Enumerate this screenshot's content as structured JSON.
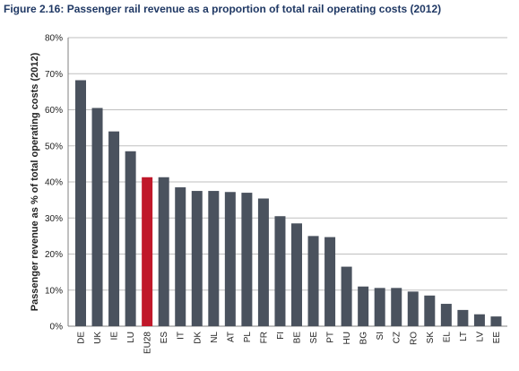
{
  "chart_data": {
    "type": "bar",
    "title": "Figure 2.16: Passenger rail revenue as a proportion of total rail operating costs (2012)",
    "xlabel": "",
    "ylabel": "Passenger revenue as % of total operating costs (2012)",
    "ylim": [
      0,
      80
    ],
    "yticks": [
      "0%",
      "10%",
      "20%",
      "30%",
      "40%",
      "50%",
      "60%",
      "70%",
      "80%"
    ],
    "grid": true,
    "categories": [
      "DE",
      "UK",
      "IE",
      "LU",
      "EU28",
      "ES",
      "IT",
      "DK",
      "NL",
      "AT",
      "PL",
      "FR",
      "FI",
      "BE",
      "SE",
      "PT",
      "HU",
      "BG",
      "SI",
      "CZ",
      "RO",
      "SK",
      "EL",
      "LT",
      "LV",
      "EE"
    ],
    "values": [
      68.2,
      60.5,
      54.0,
      48.5,
      41.3,
      41.3,
      38.5,
      37.5,
      37.5,
      37.2,
      37.0,
      35.4,
      30.5,
      28.5,
      25.0,
      24.7,
      16.5,
      11.0,
      10.6,
      10.6,
      9.6,
      8.5,
      6.2,
      4.5,
      3.3,
      2.7
    ],
    "highlight": "EU28",
    "colors": {
      "bar": "#4a525e",
      "highlight": "#c0182a"
    }
  }
}
